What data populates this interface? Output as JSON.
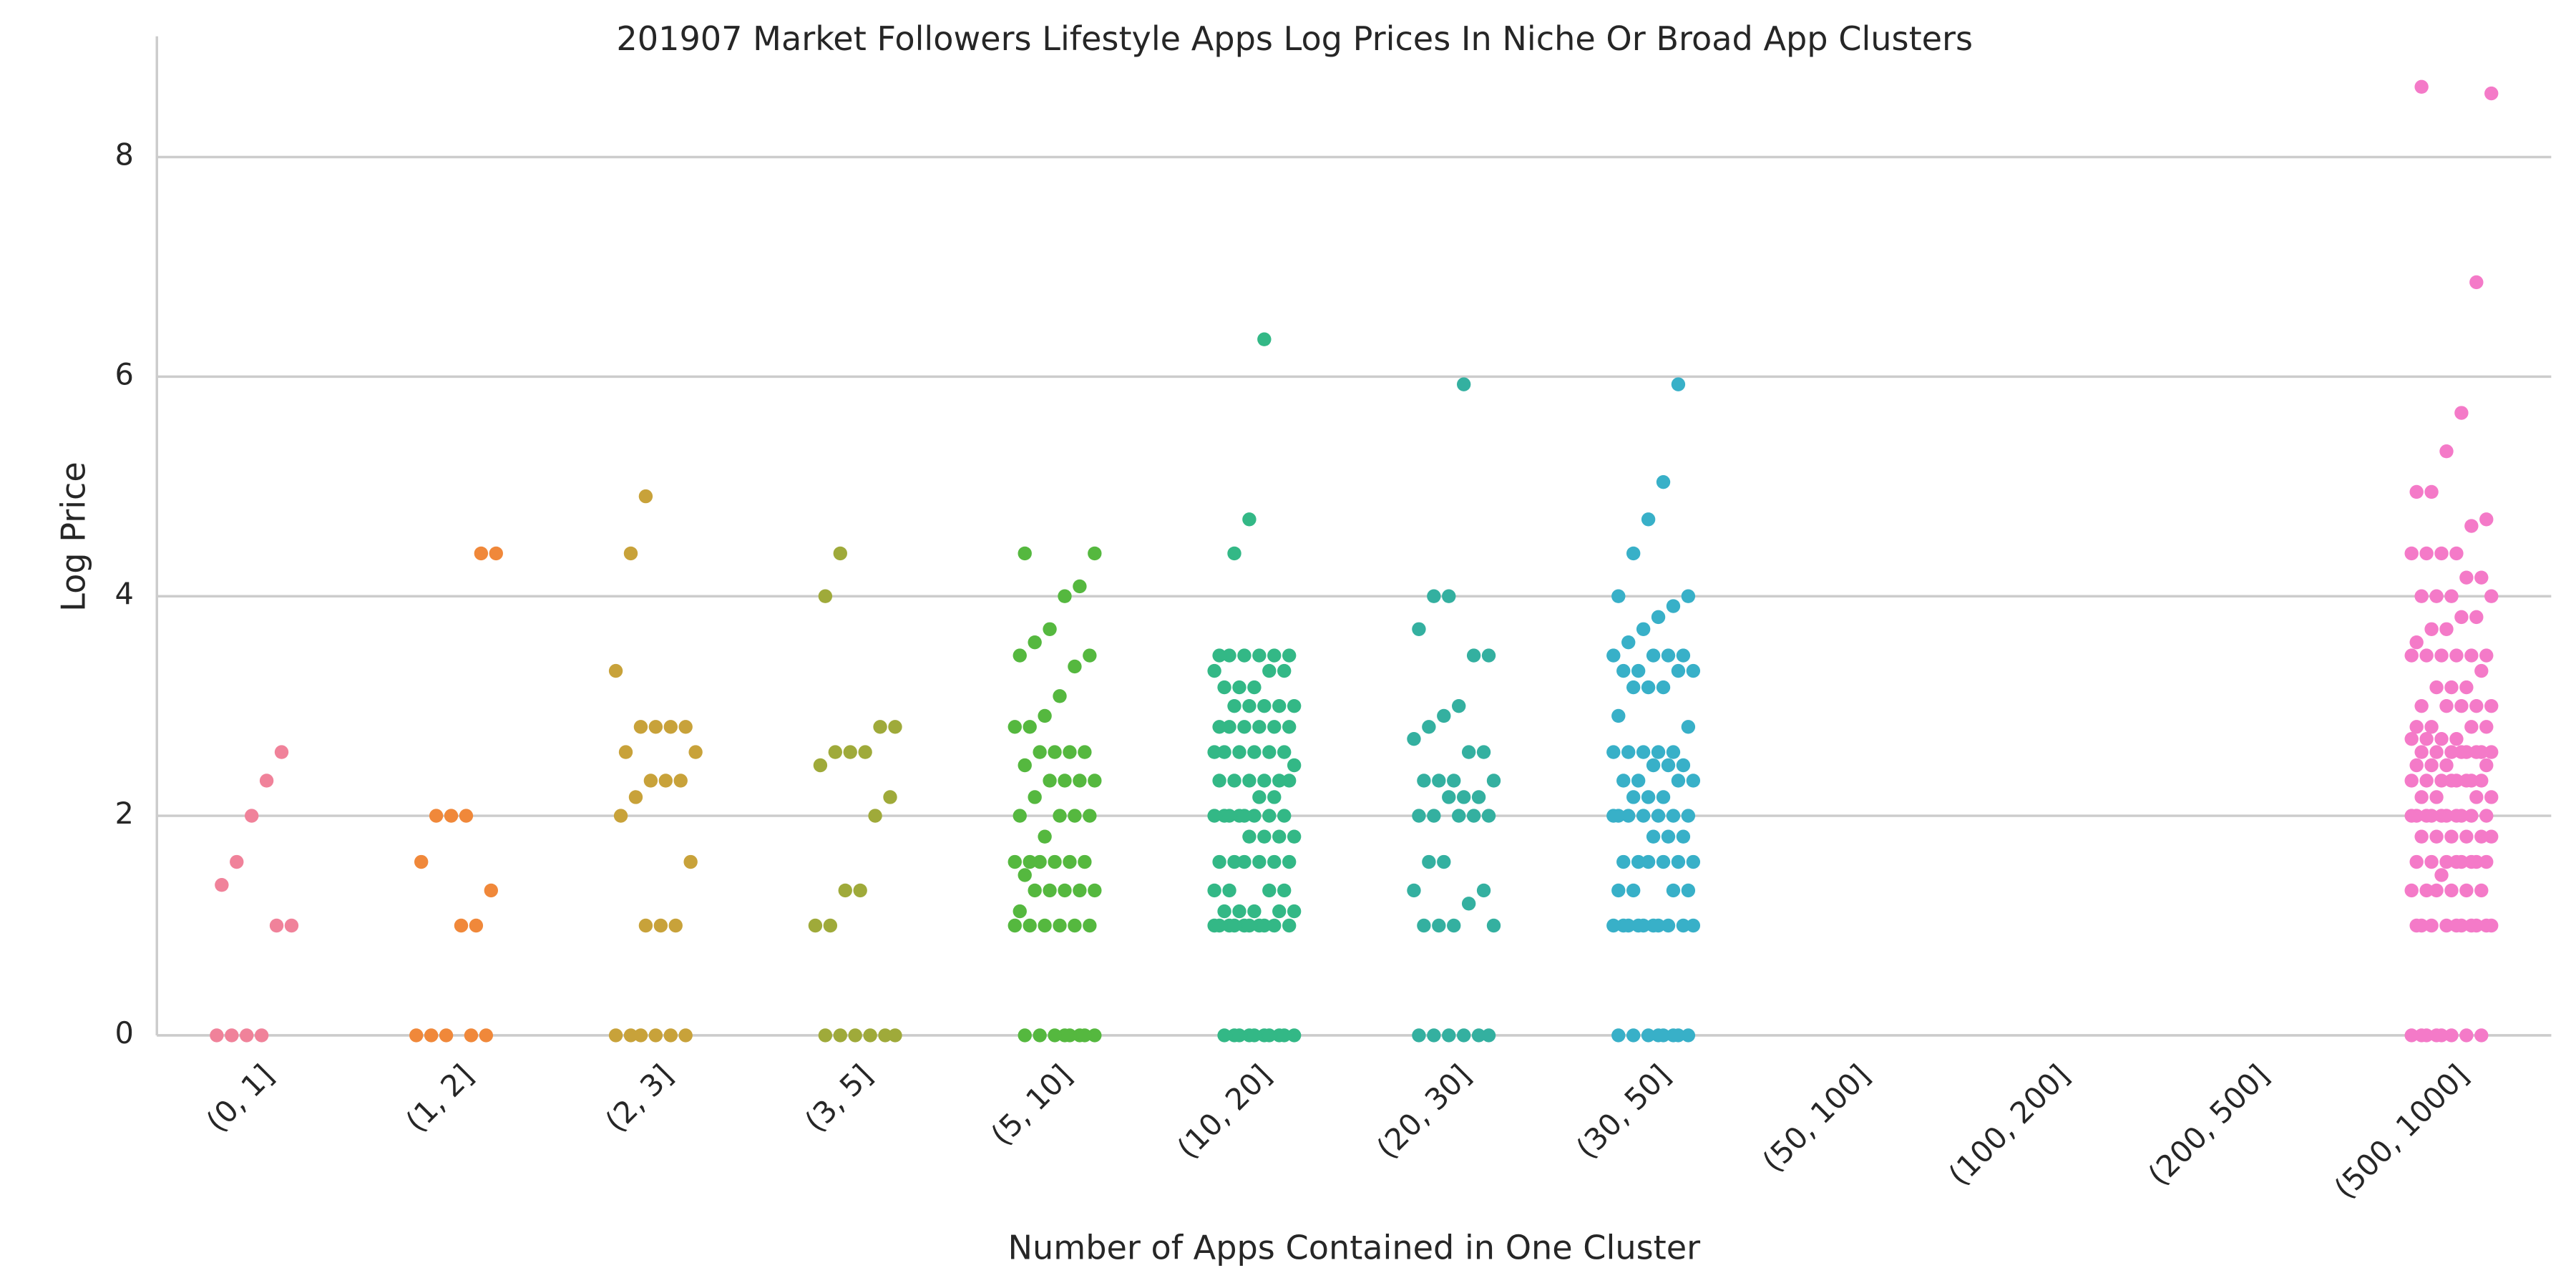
{
  "chart_data": {
    "type": "strip",
    "title": "201907 Market Followers Lifestyle Apps Log Prices In Niche Or Broad App Clusters",
    "x_label": "Number of Apps Contained in One Cluster",
    "y_label": "Log Price",
    "categories": [
      "(0, 1]",
      "(1, 2]",
      "(2, 3]",
      "(3, 5]",
      "(5, 10]",
      "(10, 20]",
      "(20, 30]",
      "(30, 50]",
      "(50, 100]",
      "(100, 200]",
      "(200, 500]",
      "(500, 1000]"
    ],
    "colors": [
      "#f0829a",
      "#f0883a",
      "#c8a23a",
      "#9faa3a",
      "#55b83f",
      "#33b886",
      "#34b0a0",
      "#38b0c8",
      "#6e9af4",
      "#a58af4",
      "#cc7af4",
      "#f47ac8"
    ],
    "values": [
      [
        0,
        0,
        0,
        0,
        1,
        1,
        1.37,
        1.58,
        2,
        2.32,
        2.58
      ],
      [
        0,
        0,
        0,
        0,
        0,
        1,
        1,
        1.32,
        1.58,
        2,
        2,
        2,
        4.39,
        4.39
      ],
      [
        0,
        0,
        0,
        0,
        0,
        0,
        1,
        1,
        1,
        1.58,
        2,
        2.17,
        2.32,
        2.32,
        2.32,
        2.58,
        2.58,
        2.81,
        2.81,
        2.81,
        2.81,
        3.32,
        4.39,
        4.91
      ],
      [
        0,
        0,
        0,
        0,
        0,
        0,
        1,
        1,
        1.32,
        1.32,
        2,
        2.17,
        2.46,
        2.58,
        2.58,
        2.58,
        2.81,
        2.81,
        4.0,
        4.39
      ],
      [
        0,
        0,
        0,
        0,
        0,
        0,
        0,
        0,
        1,
        1,
        1,
        1,
        1,
        1,
        1.13,
        1.32,
        1.32,
        1.32,
        1.32,
        1.32,
        1.46,
        1.58,
        1.58,
        1.58,
        1.58,
        1.58,
        1.58,
        1.81,
        2,
        2,
        2,
        2,
        2.17,
        2.32,
        2.32,
        2.32,
        2.32,
        2.46,
        2.58,
        2.58,
        2.58,
        2.58,
        2.81,
        2.81,
        2.91,
        3.09,
        3.36,
        3.46,
        3.46,
        3.58,
        3.7,
        4.0,
        4.09,
        4.39,
        4.39
      ],
      [
        0,
        0,
        0,
        0,
        0,
        0,
        0,
        0,
        0,
        0,
        1,
        1,
        1,
        1,
        1,
        1,
        1,
        1,
        1,
        1,
        1.13,
        1.13,
        1.13,
        1.13,
        1.13,
        1.32,
        1.32,
        1.32,
        1.32,
        1.58,
        1.58,
        1.58,
        1.58,
        1.58,
        1.58,
        1.81,
        1.81,
        1.81,
        1.81,
        2,
        2,
        2,
        2,
        2,
        2,
        2,
        2,
        2.17,
        2.17,
        2.32,
        2.32,
        2.32,
        2.32,
        2.32,
        2.32,
        2.46,
        2.58,
        2.58,
        2.58,
        2.58,
        2.58,
        2.58,
        2.81,
        2.81,
        2.81,
        2.81,
        2.81,
        2.81,
        3,
        3,
        3,
        3,
        3,
        3.17,
        3.17,
        3.17,
        3.32,
        3.32,
        3.32,
        3.46,
        3.46,
        3.46,
        3.46,
        3.46,
        3.46,
        4.39,
        4.7,
        6.34
      ],
      [
        0,
        0,
        0,
        0,
        0,
        0,
        1,
        1,
        1,
        1,
        1.2,
        1.32,
        1.32,
        1.58,
        1.58,
        2,
        2,
        2,
        2,
        2,
        2.17,
        2.17,
        2.17,
        2.32,
        2.32,
        2.32,
        2.32,
        2.58,
        2.58,
        2.7,
        2.81,
        2.91,
        3.0,
        3.46,
        3.46,
        3.7,
        4.0,
        4.0,
        5.93
      ],
      [
        0,
        0,
        0,
        0,
        0,
        0,
        0,
        0,
        1,
        1,
        1,
        1,
        1,
        1,
        1,
        1,
        1,
        1,
        1.32,
        1.32,
        1.32,
        1.32,
        1.58,
        1.58,
        1.58,
        1.58,
        1.58,
        1.58,
        1.81,
        1.81,
        1.81,
        2,
        2,
        2,
        2,
        2,
        2,
        2,
        2.17,
        2.17,
        2.17,
        2.32,
        2.32,
        2.32,
        2.32,
        2.46,
        2.46,
        2.46,
        2.58,
        2.58,
        2.58,
        2.58,
        2.58,
        2.81,
        2.91,
        3.17,
        3.17,
        3.17,
        3.32,
        3.32,
        3.32,
        3.32,
        3.46,
        3.46,
        3.46,
        3.46,
        3.58,
        3.7,
        3.81,
        3.91,
        4.0,
        4.0,
        4.39,
        4.7,
        5.04,
        5.93
      ],
      [],
      [],
      [],
      [
        0,
        0,
        0,
        0,
        0,
        0,
        0,
        0,
        1,
        1,
        1,
        1,
        1,
        1,
        1,
        1,
        1,
        1,
        1.32,
        1.32,
        1.32,
        1.32,
        1.32,
        1.32,
        1.46,
        1.58,
        1.58,
        1.58,
        1.58,
        1.58,
        1.58,
        1.58,
        1.58,
        1.81,
        1.81,
        1.81,
        1.81,
        1.81,
        1.81,
        2,
        2,
        2,
        2,
        2,
        2,
        2,
        2,
        2,
        2,
        2.17,
        2.17,
        2.17,
        2.17,
        2.32,
        2.32,
        2.32,
        2.32,
        2.32,
        2.32,
        2.32,
        2.32,
        2.46,
        2.46,
        2.46,
        2.46,
        2.58,
        2.58,
        2.58,
        2.58,
        2.58,
        2.58,
        2.58,
        2.58,
        2.7,
        2.7,
        2.7,
        2.7,
        2.81,
        2.81,
        2.81,
        2.81,
        3,
        3,
        3,
        3,
        3,
        3.17,
        3.17,
        3.17,
        3.32,
        3.46,
        3.46,
        3.46,
        3.46,
        3.46,
        3.46,
        3.58,
        3.7,
        3.7,
        3.81,
        3.81,
        4.0,
        4.0,
        4.0,
        4.0,
        4.17,
        4.17,
        4.39,
        4.39,
        4.39,
        4.39,
        4.64,
        4.7,
        4.95,
        4.95,
        5.32,
        5.67,
        6.86,
        8.58,
        8.64
      ]
    ],
    "ylim": [
      0,
      9.1
    ],
    "yticks": [
      0,
      2,
      4,
      6,
      8
    ],
    "grid": true
  }
}
